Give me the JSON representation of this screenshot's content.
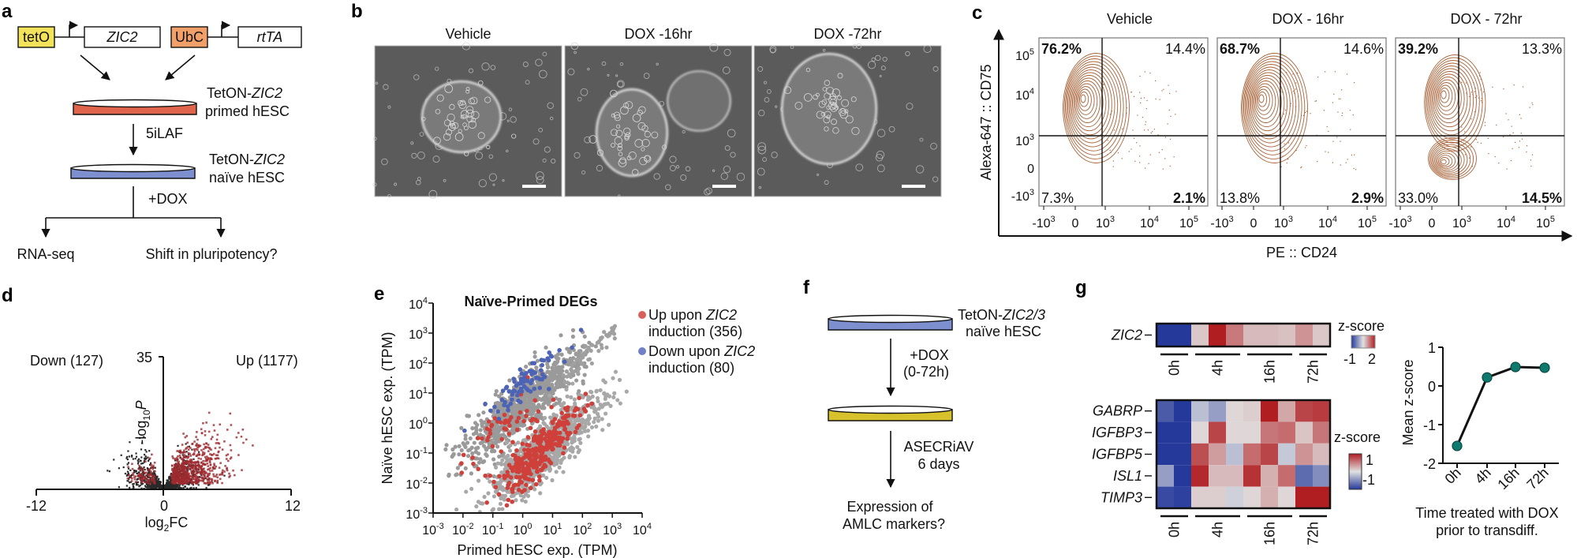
{
  "panel_labels": {
    "a": "a",
    "b": "b",
    "c": "c",
    "d": "d",
    "e": "e",
    "f": "f",
    "g": "g"
  },
  "colors": {
    "tetO": "#f3e35a",
    "UbC": "#f2a06a",
    "primed_dish": "#e0644b",
    "naive_dish": "#7d8fcf",
    "transdiff_dish": "#d8c22b",
    "flow_contour": "#a8643a",
    "pct_blue": "#2a3593",
    "pct_red": "#c8192e",
    "volcano_up": "#9e2a2f",
    "volcano_ns": "#2a2a2a",
    "up_points": "#d0403a",
    "down_points": "#4d63b5",
    "ns_points": "#a0a0a0",
    "heat_low": "#25399a",
    "heat_high": "#b01e22",
    "line_marker": "#0e7a6e"
  },
  "a": {
    "promoter1": "tetO",
    "gene1": "ZIC2",
    "promoter2": "UbC",
    "gene2": "rtTA",
    "tet_prefix": "TetON-",
    "gene": "ZIC2",
    "primed": "primed hESC",
    "naive": "naïve hESC",
    "step1": "5iLAF",
    "step2": "+DOX",
    "out1": "RNA-seq",
    "out2": "Shift in pluripotency?"
  },
  "b": {
    "titles": [
      "Vehicle",
      "DOX -16hr",
      "DOX -72hr"
    ]
  },
  "c": {
    "panels": [
      {
        "title": "Vehicle",
        "ul": "76.2%",
        "ur": "14.4%",
        "ll": "7.3%",
        "lr": "2.1%"
      },
      {
        "title": "DOX - 16hr",
        "ul": "68.7%",
        "ur": "14.6%",
        "ll": "13.8%",
        "lr": "2.9%"
      },
      {
        "title": "DOX - 72hr",
        "ul": "39.2%",
        "ur": "13.3%",
        "ll": "33.0%",
        "lr": "14.5%"
      }
    ],
    "ylabel": "Alexa-647 :: CD75",
    "xlabel": "PE :: CD24",
    "tick_base": "10",
    "zero": "0",
    "y_ticks": [
      {
        "b": "10",
        "e": "5"
      },
      {
        "b": "10",
        "e": "4"
      },
      {
        "b": "10",
        "e": "3"
      },
      {
        "b": "0",
        "e": ""
      },
      {
        "b": "-10",
        "e": "3"
      }
    ],
    "x_ticks": [
      {
        "b": "-10",
        "e": "3"
      },
      {
        "b": "0",
        "e": ""
      },
      {
        "b": "10",
        "e": "3"
      },
      {
        "b": "10",
        "e": "4"
      },
      {
        "b": "10",
        "e": "5"
      }
    ]
  },
  "d": {
    "down": "Down (127)",
    "up": "Up (1177)",
    "ymax": "35",
    "ylabel_pre": "-log",
    "ylabel_sub": "10",
    "ylabel_post": "P",
    "xlabel_pre": "log",
    "xlabel_sub": "2",
    "xlabel_post": "FC",
    "x_ticks": [
      "-12",
      "0",
      "12"
    ],
    "x_range": [
      -12,
      12
    ],
    "y_range": [
      0,
      35
    ]
  },
  "e": {
    "title": "Naïve-Primed DEGs",
    "xlabel": "Primed hESC exp. (TPM)",
    "ylabel": "Naïve hESC exp. (TPM)",
    "tick_base": "10",
    "exps": [
      "-3",
      "-2",
      "-1",
      "0",
      "1",
      "2",
      "3",
      "4"
    ],
    "legend": [
      {
        "l1_pre": "Up upon ",
        "l1_gene": "ZIC2",
        "l2": "induction (356)"
      },
      {
        "l1_pre": "Down upon ",
        "l1_gene": "ZIC2",
        "l2": "induction (80)"
      }
    ]
  },
  "f": {
    "dish_prefix": "TetON-",
    "dish_gene": "ZIC2/3",
    "dish_line2": "naïve hESC",
    "step1a": "+DOX",
    "step1b": "(0-72h)",
    "step2a": "ASECRiAV",
    "step2b": "6 days",
    "out1": "Expression of",
    "out2": "AMLC markers?"
  },
  "g": {
    "time_groups": [
      "0h",
      "4h",
      "16h",
      "72h"
    ],
    "group_cols": [
      2,
      3,
      3,
      2
    ],
    "top": {
      "genes": [
        "ZIC2"
      ],
      "scale_label": "z-score",
      "scale_min": "-1",
      "scale_max": "2",
      "range": [
        -1,
        2
      ],
      "values": [
        [
          -1,
          -1,
          0.7,
          2,
          1.3,
          0.8,
          0.8,
          0.75,
          1.1,
          0.7
        ]
      ]
    },
    "bottom": {
      "genes": [
        "GABRP",
        "IGFBP3",
        "IGFBP5",
        "ISL1",
        "TIMP3"
      ],
      "scale_label": "z-score",
      "scale_max": "1",
      "scale_min": "-1",
      "range": [
        -1,
        1
      ],
      "values": [
        [
          -0.8,
          -1,
          -0.2,
          -0.4,
          0.05,
          0.1,
          1,
          0.3,
          0.8,
          0.85
        ],
        [
          -1,
          -1,
          0.05,
          0.8,
          0.05,
          0.05,
          0.55,
          0.6,
          0.15,
          0.55
        ],
        [
          -1,
          -1,
          0.75,
          0.35,
          -0.2,
          0.6,
          0.8,
          -0.15,
          0.4,
          0.2
        ],
        [
          -0.4,
          -1,
          0.95,
          0.2,
          0.2,
          0.9,
          0.25,
          0.6,
          -0.7,
          -0.5
        ],
        [
          -0.9,
          -0.95,
          0.1,
          0.1,
          -0.1,
          0.05,
          0.25,
          0.05,
          1,
          1
        ]
      ]
    },
    "line": {
      "ylabel": "Mean z-score",
      "xlabel1": "Time treated with DOX",
      "xlabel2": "prior to transdiff.",
      "x": [
        "0h",
        "4h",
        "16h",
        "72h"
      ],
      "y": [
        -1.55,
        0.22,
        0.49,
        0.47
      ],
      "y_ticks": [
        "1",
        "0",
        "-1",
        "-2"
      ],
      "ylim": [
        -2,
        1
      ]
    }
  }
}
